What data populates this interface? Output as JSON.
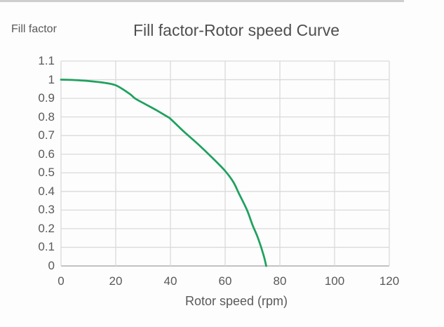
{
  "chart_data": {
    "type": "line",
    "title": "Fill factor-Rotor speed Curve",
    "xlabel": "Rotor speed (rpm)",
    "ylabel": "Fill factor",
    "xlim": [
      0,
      120
    ],
    "ylim": [
      0,
      1.1
    ],
    "x_ticks": [
      0,
      20,
      40,
      60,
      80,
      100,
      120
    ],
    "y_ticks": [
      0,
      0.1,
      0.2,
      0.3,
      0.4,
      0.5,
      0.6,
      0.7,
      0.8,
      0.9,
      1,
      1.1
    ],
    "grid": true,
    "legend": false,
    "series": [
      {
        "name": "Fill factor",
        "color": "#1fa15e",
        "points": [
          [
            0,
            1.0
          ],
          [
            5,
            0.998
          ],
          [
            10,
            0.993
          ],
          [
            15,
            0.985
          ],
          [
            20,
            0.97
          ],
          [
            25,
            0.925
          ],
          [
            27,
            0.9
          ],
          [
            30,
            0.875
          ],
          [
            35,
            0.835
          ],
          [
            39,
            0.8
          ],
          [
            40,
            0.79
          ],
          [
            45,
            0.72
          ],
          [
            50,
            0.655
          ],
          [
            55,
            0.585
          ],
          [
            60,
            0.51
          ],
          [
            63,
            0.45
          ],
          [
            65,
            0.39
          ],
          [
            68,
            0.3
          ],
          [
            70,
            0.22
          ],
          [
            72,
            0.15
          ],
          [
            74,
            0.06
          ],
          [
            75,
            0
          ]
        ]
      }
    ]
  },
  "colors": {
    "curve": "#1fa15e",
    "gridline": "#dadada",
    "axis_line": "#c2c2c2",
    "tick_text": "#595959",
    "title_text": "#4f4f4f",
    "background": "#fdfdfd"
  }
}
